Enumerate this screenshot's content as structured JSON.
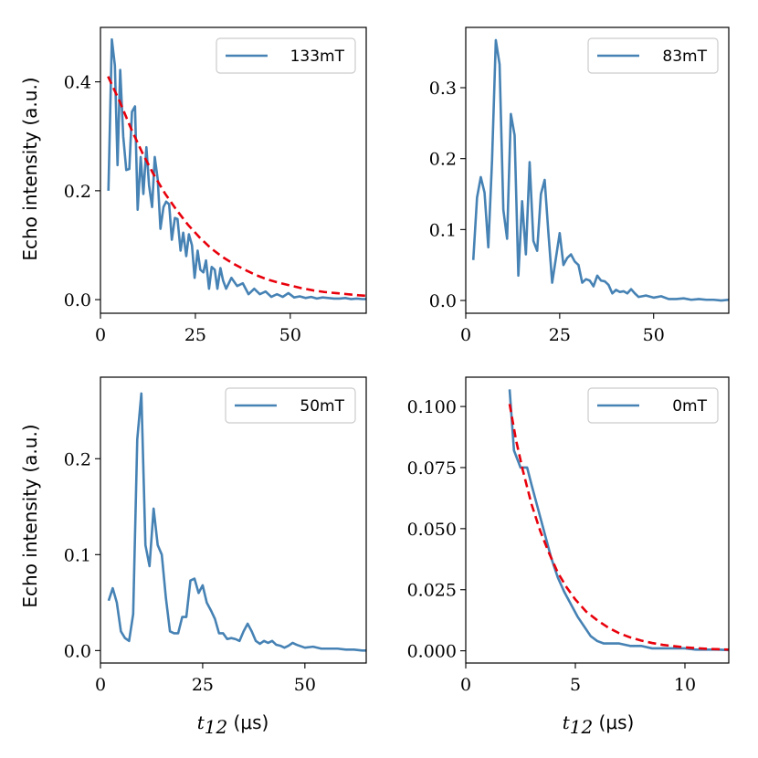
{
  "figure": {
    "xlabel_bottom": "t",
    "xlabel_sub": "12",
    "xlabel_unit": " (μs)",
    "ylabel": "Echo intensity (a.u.)"
  },
  "chart_data": [
    {
      "type": "line",
      "panel": "top-left",
      "legend": "133mT",
      "legend_placement": "top-right",
      "xlim": [
        0,
        70
      ],
      "ylim": [
        -0.025,
        0.5
      ],
      "xticks": [
        0,
        25,
        50
      ],
      "yticks": [
        0.0,
        0.2,
        0.4
      ],
      "ytick_labels": [
        "0.0",
        "0.2",
        "0.4"
      ],
      "ylabel": "Echo intensity (a.u.)",
      "xlabel": "",
      "series": [
        {
          "name": "133mT",
          "color": "#4682b4",
          "x": [
            2.1,
            3.0,
            3.8,
            4.5,
            5.2,
            6.0,
            6.8,
            7.6,
            8.3,
            9.1,
            9.8,
            10.6,
            11.3,
            12.1,
            12.8,
            13.6,
            14.3,
            15.1,
            15.8,
            16.6,
            17.3,
            18.1,
            18.8,
            19.6,
            20.3,
            21.1,
            21.8,
            22.6,
            23.3,
            24.1,
            24.8,
            25.6,
            26.3,
            27.1,
            27.8,
            28.6,
            29.3,
            30.1,
            30.8,
            31.6,
            32.3,
            33.1,
            34.5,
            36,
            37.5,
            39,
            40.5,
            42,
            43.5,
            45,
            46.5,
            48,
            49.5,
            51,
            52.5,
            54,
            55.5,
            57,
            58.5,
            60,
            61.5,
            63,
            64.5,
            66,
            67.5,
            69,
            70
          ],
          "y": [
            0.2,
            0.478,
            0.43,
            0.247,
            0.422,
            0.3,
            0.238,
            0.24,
            0.345,
            0.355,
            0.165,
            0.262,
            0.194,
            0.28,
            0.21,
            0.17,
            0.262,
            0.22,
            0.13,
            0.17,
            0.18,
            0.175,
            0.11,
            0.15,
            0.148,
            0.09,
            0.123,
            0.08,
            0.12,
            0.1,
            0.04,
            0.09,
            0.055,
            0.05,
            0.072,
            0.02,
            0.06,
            0.055,
            0.02,
            0.058,
            0.035,
            0.02,
            0.04,
            0.025,
            0.03,
            0.01,
            0.02,
            0.01,
            0.015,
            0.005,
            0.01,
            0.005,
            0.012,
            0.004,
            0.006,
            0.003,
            0.005,
            0.002,
            0.004,
            0.003,
            0.002,
            0.002,
            0.003,
            0.001,
            0.002,
            0.001,
            0.001
          ]
        },
        {
          "name": "fit",
          "color": "#e8000b",
          "dashed": true,
          "x": [
            2,
            5,
            8,
            11,
            14,
            17,
            20,
            23,
            26,
            29,
            32,
            35,
            38,
            41,
            44,
            47,
            50,
            53,
            56,
            59,
            62,
            65,
            68,
            70
          ],
          "y": [
            0.41,
            0.365,
            0.315,
            0.27,
            0.23,
            0.195,
            0.165,
            0.138,
            0.115,
            0.095,
            0.079,
            0.066,
            0.055,
            0.045,
            0.037,
            0.031,
            0.026,
            0.021,
            0.017,
            0.014,
            0.012,
            0.01,
            0.008,
            0.007
          ]
        }
      ]
    },
    {
      "type": "line",
      "panel": "top-right",
      "legend": "83mT",
      "legend_placement": "top-right",
      "xlim": [
        0,
        70
      ],
      "ylim": [
        -0.018,
        0.385
      ],
      "xticks": [
        0,
        25,
        50
      ],
      "yticks": [
        0.0,
        0.1,
        0.2,
        0.3
      ],
      "ytick_labels": [
        "0.0",
        "0.1",
        "0.2",
        "0.3"
      ],
      "xlabel": "",
      "series": [
        {
          "name": "83mT",
          "color": "#4682b4",
          "x": [
            2,
            3,
            4,
            5,
            6,
            7,
            8,
            9,
            10,
            11,
            12,
            13,
            14,
            15,
            16,
            17,
            18,
            19,
            20,
            21,
            22,
            23,
            24,
            25,
            26,
            27,
            28,
            29,
            30,
            31,
            32,
            33,
            34,
            35,
            36,
            37,
            38,
            39,
            40,
            41,
            42,
            43,
            44,
            45,
            46,
            47,
            48,
            50,
            52,
            54,
            56,
            58,
            60,
            62,
            64,
            66,
            68,
            70
          ],
          "y": [
            0.057,
            0.145,
            0.174,
            0.152,
            0.075,
            0.198,
            0.367,
            0.333,
            0.128,
            0.087,
            0.263,
            0.233,
            0.035,
            0.14,
            0.065,
            0.195,
            0.084,
            0.07,
            0.15,
            0.17,
            0.095,
            0.025,
            0.06,
            0.095,
            0.05,
            0.06,
            0.065,
            0.055,
            0.05,
            0.025,
            0.03,
            0.028,
            0.02,
            0.035,
            0.028,
            0.027,
            0.022,
            0.01,
            0.015,
            0.012,
            0.013,
            0.01,
            0.016,
            0.01,
            0.005,
            0.006,
            0.007,
            0.004,
            0.006,
            0.002,
            0.002,
            0.003,
            0.001,
            0.002,
            0.001,
            0.001,
            0.0,
            0.001
          ]
        }
      ]
    },
    {
      "type": "line",
      "panel": "bottom-left",
      "legend": "50mT",
      "legend_placement": "top-right",
      "xlim": [
        0,
        65
      ],
      "ylim": [
        -0.013,
        0.285
      ],
      "xticks": [
        0,
        25,
        50
      ],
      "yticks": [
        0.0,
        0.1,
        0.2
      ],
      "ytick_labels": [
        "0.0",
        "0.1",
        "0.2"
      ],
      "ylabel": "Echo intensity (a.u.)",
      "xlabel": "t12 (μs)",
      "series": [
        {
          "name": "50mT",
          "color": "#4682b4",
          "x": [
            2,
            3,
            4,
            5,
            6,
            7,
            8,
            9,
            10,
            11,
            12,
            13,
            14,
            15,
            16,
            17,
            18,
            19,
            20,
            21,
            22,
            23,
            24,
            25,
            26,
            27,
            28,
            29,
            30,
            31,
            32,
            33,
            34,
            35,
            36,
            37,
            38,
            39,
            40,
            41,
            42,
            43,
            44,
            45,
            46,
            47,
            48,
            50,
            52,
            54,
            56,
            58,
            60,
            62,
            64,
            65
          ],
          "y": [
            0.052,
            0.065,
            0.05,
            0.02,
            0.013,
            0.01,
            0.038,
            0.22,
            0.268,
            0.11,
            0.088,
            0.148,
            0.11,
            0.1,
            0.055,
            0.02,
            0.018,
            0.018,
            0.035,
            0.035,
            0.073,
            0.075,
            0.06,
            0.068,
            0.05,
            0.042,
            0.033,
            0.018,
            0.018,
            0.012,
            0.013,
            0.012,
            0.01,
            0.02,
            0.028,
            0.02,
            0.01,
            0.007,
            0.01,
            0.008,
            0.01,
            0.006,
            0.005,
            0.003,
            0.005,
            0.008,
            0.006,
            0.003,
            0.004,
            0.002,
            0.002,
            0.002,
            0.001,
            0.001,
            0.0,
            0.0
          ]
        }
      ]
    },
    {
      "type": "line",
      "panel": "bottom-right",
      "legend": "0mT",
      "legend_placement": "top-right",
      "xlim": [
        0,
        12
      ],
      "ylim": [
        -0.005,
        0.112
      ],
      "xticks": [
        0,
        5,
        10
      ],
      "yticks": [
        0.0,
        0.025,
        0.05,
        0.075,
        0.1
      ],
      "ytick_labels": [
        "0.000",
        "0.025",
        "0.050",
        "0.075",
        "0.100"
      ],
      "xlabel": "t12 (μs)",
      "series": [
        {
          "name": "0mT",
          "color": "#4682b4",
          "x": [
            2.0,
            2.2,
            2.5,
            2.8,
            3.0,
            3.3,
            3.6,
            3.9,
            4.2,
            4.5,
            4.8,
            5.1,
            5.4,
            5.7,
            6.0,
            6.3,
            6.6,
            7.0,
            7.5,
            8.0,
            8.5,
            9.0,
            9.5,
            10,
            10.5,
            11,
            11.5,
            12
          ],
          "y": [
            0.107,
            0.082,
            0.075,
            0.075,
            0.068,
            0.058,
            0.048,
            0.038,
            0.03,
            0.024,
            0.019,
            0.014,
            0.01,
            0.006,
            0.004,
            0.003,
            0.003,
            0.003,
            0.002,
            0.002,
            0.001,
            0.001,
            0.001,
            0.001,
            0.0005,
            0.0005,
            0.0005,
            0.0003
          ]
        },
        {
          "name": "fit",
          "color": "#e8000b",
          "dashed": true,
          "x": [
            2.0,
            2.3,
            2.6,
            3.0,
            3.4,
            3.8,
            4.2,
            4.6,
            5.0,
            5.5,
            6.0,
            6.5,
            7.0,
            7.5,
            8.0,
            8.5,
            9.0,
            10,
            11,
            12
          ],
          "y": [
            0.101,
            0.086,
            0.074,
            0.06,
            0.049,
            0.04,
            0.032,
            0.026,
            0.021,
            0.016,
            0.0125,
            0.0095,
            0.0072,
            0.0055,
            0.0042,
            0.0032,
            0.0024,
            0.0014,
            0.0008,
            0.0005
          ]
        }
      ]
    }
  ]
}
